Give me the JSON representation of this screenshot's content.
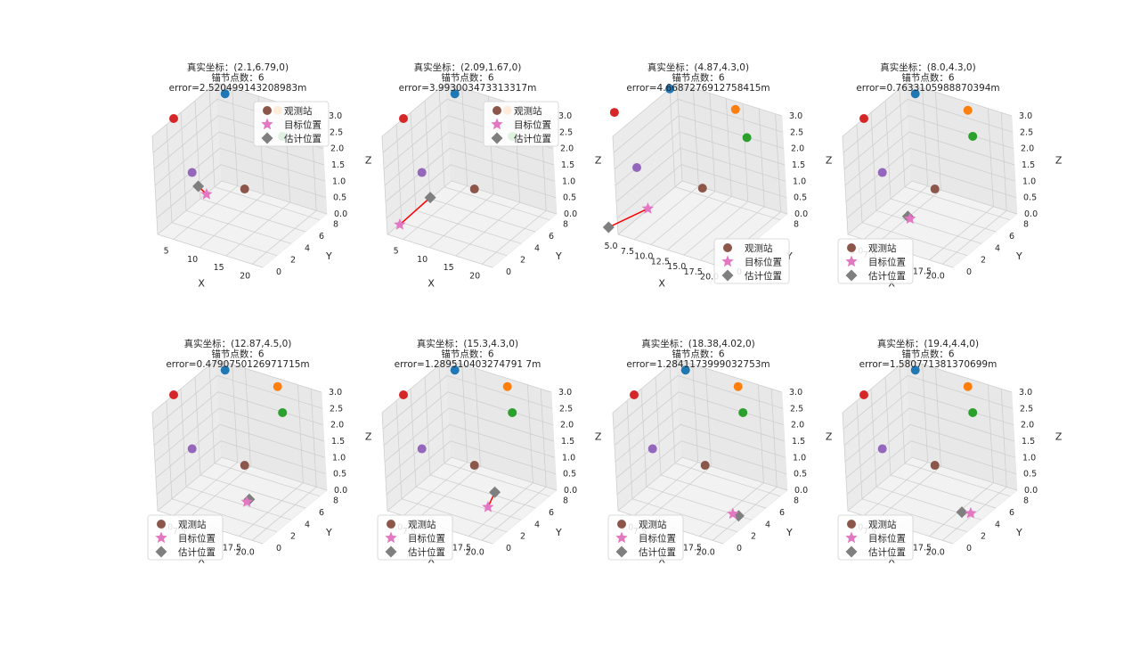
{
  "legend_labels": {
    "anchors": "观测站",
    "target": "目标位置",
    "estimate": "估计位置"
  },
  "colors": {
    "anchors": [
      "#1f77b4",
      "#ff7f0e",
      "#2ca02c",
      "#d62728",
      "#9467bd",
      "#8c564b"
    ],
    "target": "#e377c2",
    "estimate": "#7f7f7f",
    "error_line": "#ff0000",
    "pane": "#f2f2f2",
    "grid": "#cccccc"
  },
  "chart_data": [
    {
      "type": "scatter",
      "variant": "3d",
      "title_lines": [
        "真实坐标：(2.1,6.79,0)",
        "锚节点数：6",
        "error=2.520499143208983m"
      ],
      "xlabel": "X",
      "ylabel": "Y",
      "zlabel": "Z",
      "xlim": [
        2,
        22
      ],
      "ylim": [
        0,
        9
      ],
      "zlim": [
        0,
        3
      ],
      "xticks": [
        "5",
        "10",
        "15",
        "20"
      ],
      "xtick_values": [
        5,
        10,
        15,
        20
      ],
      "yticks": [
        "0",
        "2",
        "4",
        "6",
        "8"
      ],
      "ytick_values": [
        0,
        2,
        4,
        6,
        8
      ],
      "zticks": [
        "0.0",
        "0.5",
        "1.0",
        "1.5",
        "2.0",
        "2.5",
        "3.0"
      ],
      "anchors": [
        [
          5,
          8,
          3
        ],
        [
          15,
          8,
          3
        ],
        [
          20,
          5,
          3
        ],
        [
          2,
          3,
          3
        ],
        [
          5,
          3,
          1.5
        ],
        [
          15,
          3,
          1.5
        ]
      ],
      "target": [
        2.1,
        6.79,
        0
      ],
      "estimate": [
        3.6,
        4.7,
        0.7
      ],
      "legend_position": "upper right"
    },
    {
      "type": "scatter",
      "variant": "3d",
      "title_lines": [
        "真实坐标：(2.09,1.67,0)",
        "锚节点数：6",
        "error=3.993003473313317m"
      ],
      "xlabel": "X",
      "ylabel": "Y",
      "zlabel": "Z",
      "xlim": [
        2,
        22
      ],
      "ylim": [
        0,
        9
      ],
      "zlim": [
        0,
        3
      ],
      "xticks": [
        "5",
        "10",
        "15",
        "20"
      ],
      "xtick_values": [
        5,
        10,
        15,
        20
      ],
      "yticks": [
        "0",
        "2",
        "4",
        "6",
        "8"
      ],
      "ytick_values": [
        0,
        2,
        4,
        6,
        8
      ],
      "zticks": [
        "0.0",
        "0.5",
        "1.0",
        "1.5",
        "2.0",
        "2.5",
        "3.0"
      ],
      "anchors": [
        [
          5,
          8,
          3
        ],
        [
          15,
          8,
          3
        ],
        [
          20,
          5,
          3
        ],
        [
          2,
          3,
          3
        ],
        [
          5,
          3,
          1.5
        ],
        [
          15,
          3,
          1.5
        ]
      ],
      "target": [
        2.09,
        1.67,
        0
      ],
      "estimate": [
        5.2,
        3.8,
        0.6
      ],
      "legend_position": "upper right"
    },
    {
      "type": "scatter",
      "variant": "3d",
      "title_lines": [
        "真实坐标：(4.87,4.3,0)",
        "锚节点数：6",
        "error=4.6687276912758415m"
      ],
      "xlabel": "X",
      "ylabel": "Y",
      "zlabel": "Z",
      "xlim": [
        5,
        21
      ],
      "ylim": [
        0,
        9
      ],
      "zlim": [
        0,
        3
      ],
      "xticks": [
        "5.0",
        "7.5",
        "10.0",
        "12.5",
        "15.0",
        "17.5",
        "20.0"
      ],
      "xtick_values": [
        5,
        7.5,
        10,
        12.5,
        15,
        17.5,
        20
      ],
      "yticks": [
        "0",
        "8"
      ],
      "ytick_values": [
        0,
        8
      ],
      "zticks": [
        "0.0",
        "0.5",
        "1.0",
        "1.5",
        "2.0",
        "2.5",
        "3.0"
      ],
      "anchors": [
        [
          5,
          8,
          3
        ],
        [
          15,
          8,
          3
        ],
        [
          20,
          5,
          3
        ],
        [
          2,
          3,
          3
        ],
        [
          5,
          3,
          1.5
        ],
        [
          15,
          3,
          1.5
        ]
      ],
      "target": [
        4.87,
        4.3,
        0
      ],
      "estimate": [
        3.0,
        0.5,
        0
      ],
      "legend_position": "lower right"
    },
    {
      "type": "scatter",
      "variant": "3d",
      "title_lines": [
        "真实坐标：(8.0,4.3,0)",
        "锚节点数：6",
        "error=0.7633105988870394m"
      ],
      "xlabel": "X",
      "ylabel": "Y",
      "zlabel": "Z",
      "xlim": [
        2,
        22
      ],
      "ylim": [
        0,
        9
      ],
      "zlim": [
        0,
        3
      ],
      "xticks": [
        "5.0",
        "7.5",
        "17.5",
        "20.0"
      ],
      "xtick_values": [
        5,
        7.5,
        17.5,
        20
      ],
      "yticks": [
        "0",
        "2",
        "4",
        "6",
        "8"
      ],
      "ytick_values": [
        0,
        2,
        4,
        6,
        8
      ],
      "zticks": [
        "0.0",
        "0.5",
        "1.0",
        "1.5",
        "2.0",
        "2.5",
        "3.0"
      ],
      "anchors": [
        [
          5,
          8,
          3
        ],
        [
          15,
          8,
          3
        ],
        [
          20,
          5,
          3
        ],
        [
          2,
          3,
          3
        ],
        [
          5,
          3,
          1.5
        ],
        [
          15,
          3,
          1.5
        ]
      ],
      "target": [
        8.0,
        4.3,
        0
      ],
      "estimate": [
        7.3,
        4.5,
        0
      ],
      "legend_position": "lower left"
    },
    {
      "type": "scatter",
      "variant": "3d",
      "title_lines": [
        "真实坐标：(12.87,4.5,0)",
        "锚节点数：6",
        "error=0.4790750126971715m"
      ],
      "xlabel": "X",
      "ylabel": "Y",
      "zlabel": "Z",
      "xlim": [
        2,
        22
      ],
      "ylim": [
        0,
        9
      ],
      "zlim": [
        0,
        3
      ],
      "xticks": [
        "5.0",
        "7.5",
        "17.5",
        "20.0"
      ],
      "xtick_values": [
        5,
        7.5,
        17.5,
        20
      ],
      "yticks": [
        "0",
        "2",
        "4",
        "6",
        "8"
      ],
      "ytick_values": [
        0,
        2,
        4,
        6,
        8
      ],
      "zticks": [
        "0.0",
        "0.5",
        "1.0",
        "1.5",
        "2.0",
        "2.5",
        "3.0"
      ],
      "anchors": [
        [
          5,
          8,
          3
        ],
        [
          15,
          8,
          3
        ],
        [
          20,
          5,
          3
        ],
        [
          2,
          3,
          3
        ],
        [
          5,
          3,
          1.5
        ],
        [
          15,
          3,
          1.5
        ]
      ],
      "target": [
        12.87,
        4.5,
        0
      ],
      "estimate": [
        12.8,
        4.9,
        0
      ],
      "legend_position": "lower left"
    },
    {
      "type": "scatter",
      "variant": "3d",
      "title_lines": [
        "真实坐标：(15.3,4.3,0)",
        "锚节点数：6",
        "error=1.289510403274791 7m"
      ],
      "xlabel": "X",
      "ylabel": "Y",
      "zlabel": "Z",
      "xlim": [
        2,
        22
      ],
      "ylim": [
        0,
        9
      ],
      "zlim": [
        0,
        3
      ],
      "xticks": [
        "5.0",
        "7.5",
        "17.5",
        "20.0"
      ],
      "xtick_values": [
        5,
        7.5,
        17.5,
        20
      ],
      "yticks": [
        "0",
        "2",
        "4",
        "6",
        "8"
      ],
      "ytick_values": [
        0,
        2,
        4,
        6,
        8
      ],
      "zticks": [
        "0.0",
        "0.5",
        "1.0",
        "1.5",
        "2.0",
        "2.5",
        "3.0"
      ],
      "anchors": [
        [
          5,
          8,
          3
        ],
        [
          15,
          8,
          3
        ],
        [
          20,
          5,
          3
        ],
        [
          2,
          3,
          3
        ],
        [
          5,
          3,
          1.5
        ],
        [
          15,
          3,
          1.5
        ]
      ],
      "target": [
        15.3,
        4.3,
        0
      ],
      "estimate": [
        15.5,
        5.2,
        0.3
      ],
      "legend_position": "lower left"
    },
    {
      "type": "scatter",
      "variant": "3d",
      "title_lines": [
        "真实坐标：(18.38,4.02,0)",
        "锚节点数：6",
        "error=1.2841173999032753m"
      ],
      "xlabel": "X",
      "ylabel": "Y",
      "zlabel": "Z",
      "xlim": [
        2,
        22
      ],
      "ylim": [
        0,
        9
      ],
      "zlim": [
        0,
        3
      ],
      "xticks": [
        "5.0",
        "7.5",
        "17.5",
        "20.0"
      ],
      "xtick_values": [
        5,
        7.5,
        17.5,
        20
      ],
      "yticks": [
        "0",
        "2",
        "4",
        "6",
        "8"
      ],
      "ytick_values": [
        0,
        2,
        4,
        6,
        8
      ],
      "zticks": [
        "0.0",
        "0.5",
        "1.0",
        "1.5",
        "2.0",
        "2.5",
        "3.0"
      ],
      "anchors": [
        [
          5,
          8,
          3
        ],
        [
          15,
          8,
          3
        ],
        [
          20,
          5,
          3
        ],
        [
          2,
          3,
          3
        ],
        [
          5,
          3,
          1.5
        ],
        [
          15,
          3,
          1.5
        ]
      ],
      "target": [
        18.38,
        4.02,
        0
      ],
      "estimate": [
        19.5,
        4.0,
        0
      ],
      "legend_position": "lower left"
    },
    {
      "type": "scatter",
      "variant": "3d",
      "title_lines": [
        "真实坐标：(19.4,4.4,0)",
        "锚节点数：6",
        "error=1.580771381370699m"
      ],
      "xlabel": "X",
      "ylabel": "Y",
      "zlabel": "Z",
      "xlim": [
        2,
        22
      ],
      "ylim": [
        0,
        9
      ],
      "zlim": [
        0,
        3
      ],
      "xticks": [
        "5.0",
        "7.5",
        "17.5",
        "20.0"
      ],
      "xtick_values": [
        5,
        7.5,
        17.5,
        20
      ],
      "yticks": [
        "0",
        "2",
        "4",
        "6",
        "8"
      ],
      "ytick_values": [
        0,
        2,
        4,
        6,
        8
      ],
      "zticks": [
        "0.0",
        "0.5",
        "1.0",
        "1.5",
        "2.0",
        "2.5",
        "3.0"
      ],
      "anchors": [
        [
          5,
          8,
          3
        ],
        [
          15,
          8,
          3
        ],
        [
          20,
          5,
          3
        ],
        [
          2,
          3,
          3
        ],
        [
          5,
          3,
          1.5
        ],
        [
          15,
          3,
          1.5
        ]
      ],
      "target": [
        19.4,
        4.4,
        0
      ],
      "estimate": [
        18.0,
        4.2,
        0
      ],
      "legend_position": "lower left"
    }
  ]
}
